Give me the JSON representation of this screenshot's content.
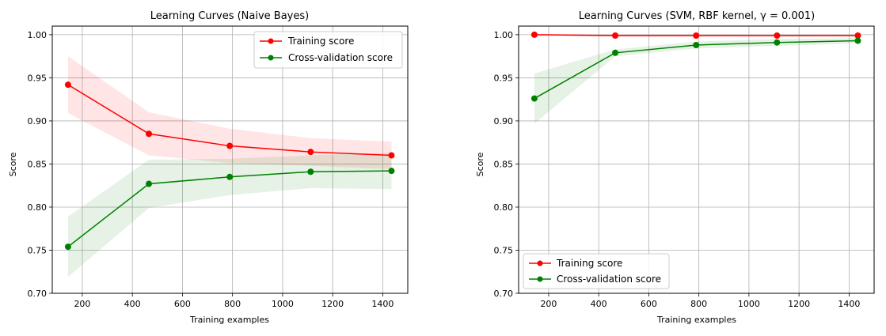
{
  "chart_data": [
    {
      "type": "line",
      "title": "Learning Curves (Naive Bayes)",
      "xlabel": "Training examples",
      "ylabel": "Score",
      "xlim": [
        80,
        1500
      ],
      "ylim": [
        0.7,
        1.01
      ],
      "xticks": [
        200,
        400,
        600,
        800,
        1000,
        1200,
        1400
      ],
      "xtick_labels": [
        "200",
        "400",
        "600",
        "800",
        "1000",
        "1200",
        "1400"
      ],
      "yticks": [
        0.7,
        0.75,
        0.8,
        0.85,
        0.9,
        0.95,
        1.0
      ],
      "ytick_labels": [
        "0.70",
        "0.75",
        "0.80",
        "0.85",
        "0.90",
        "0.95",
        "1.00"
      ],
      "grid": true,
      "legend_position": "top-right",
      "x": [
        143,
        466,
        789,
        1112,
        1435
      ],
      "series": [
        {
          "name": "Training score",
          "color": "#ff0000",
          "band_color": "#ff0000",
          "values": [
            0.942,
            0.885,
            0.871,
            0.864,
            0.86
          ],
          "lower": [
            0.909,
            0.86,
            0.851,
            0.848,
            0.844
          ],
          "upper": [
            0.975,
            0.91,
            0.891,
            0.88,
            0.876
          ]
        },
        {
          "name": "Cross-validation score",
          "color": "#008000",
          "band_color": "#008000",
          "values": [
            0.754,
            0.827,
            0.835,
            0.841,
            0.842
          ],
          "lower": [
            0.719,
            0.799,
            0.814,
            0.822,
            0.821
          ],
          "upper": [
            0.789,
            0.855,
            0.856,
            0.86,
            0.863
          ]
        }
      ]
    },
    {
      "type": "line",
      "title": "Learning Curves (SVM, RBF kernel, γ = 0.001)",
      "xlabel": "Training examples",
      "ylabel": "Score",
      "xlim": [
        80,
        1500
      ],
      "ylim": [
        0.7,
        1.01
      ],
      "xticks": [
        200,
        400,
        600,
        800,
        1000,
        1200,
        1400
      ],
      "xtick_labels": [
        "200",
        "400",
        "600",
        "800",
        "1000",
        "1200",
        "1400"
      ],
      "yticks": [
        0.7,
        0.75,
        0.8,
        0.85,
        0.9,
        0.95,
        1.0
      ],
      "ytick_labels": [
        "0.70",
        "0.75",
        "0.80",
        "0.85",
        "0.90",
        "0.95",
        "1.00"
      ],
      "grid": true,
      "legend_position": "bottom-left",
      "x": [
        143,
        466,
        789,
        1112,
        1435
      ],
      "series": [
        {
          "name": "Training score",
          "color": "#ff0000",
          "band_color": "#ff0000",
          "values": [
            1.0,
            0.999,
            0.999,
            0.999,
            0.999
          ],
          "lower": [
            0.999,
            0.998,
            0.998,
            0.998,
            0.998
          ],
          "upper": [
            1.001,
            1.0,
            1.0,
            1.0,
            1.0
          ]
        },
        {
          "name": "Cross-validation score",
          "color": "#008000",
          "band_color": "#008000",
          "values": [
            0.926,
            0.979,
            0.988,
            0.991,
            0.993
          ],
          "lower": [
            0.897,
            0.975,
            0.984,
            0.987,
            0.99
          ],
          "upper": [
            0.955,
            0.983,
            0.992,
            0.995,
            0.996
          ]
        }
      ]
    }
  ]
}
